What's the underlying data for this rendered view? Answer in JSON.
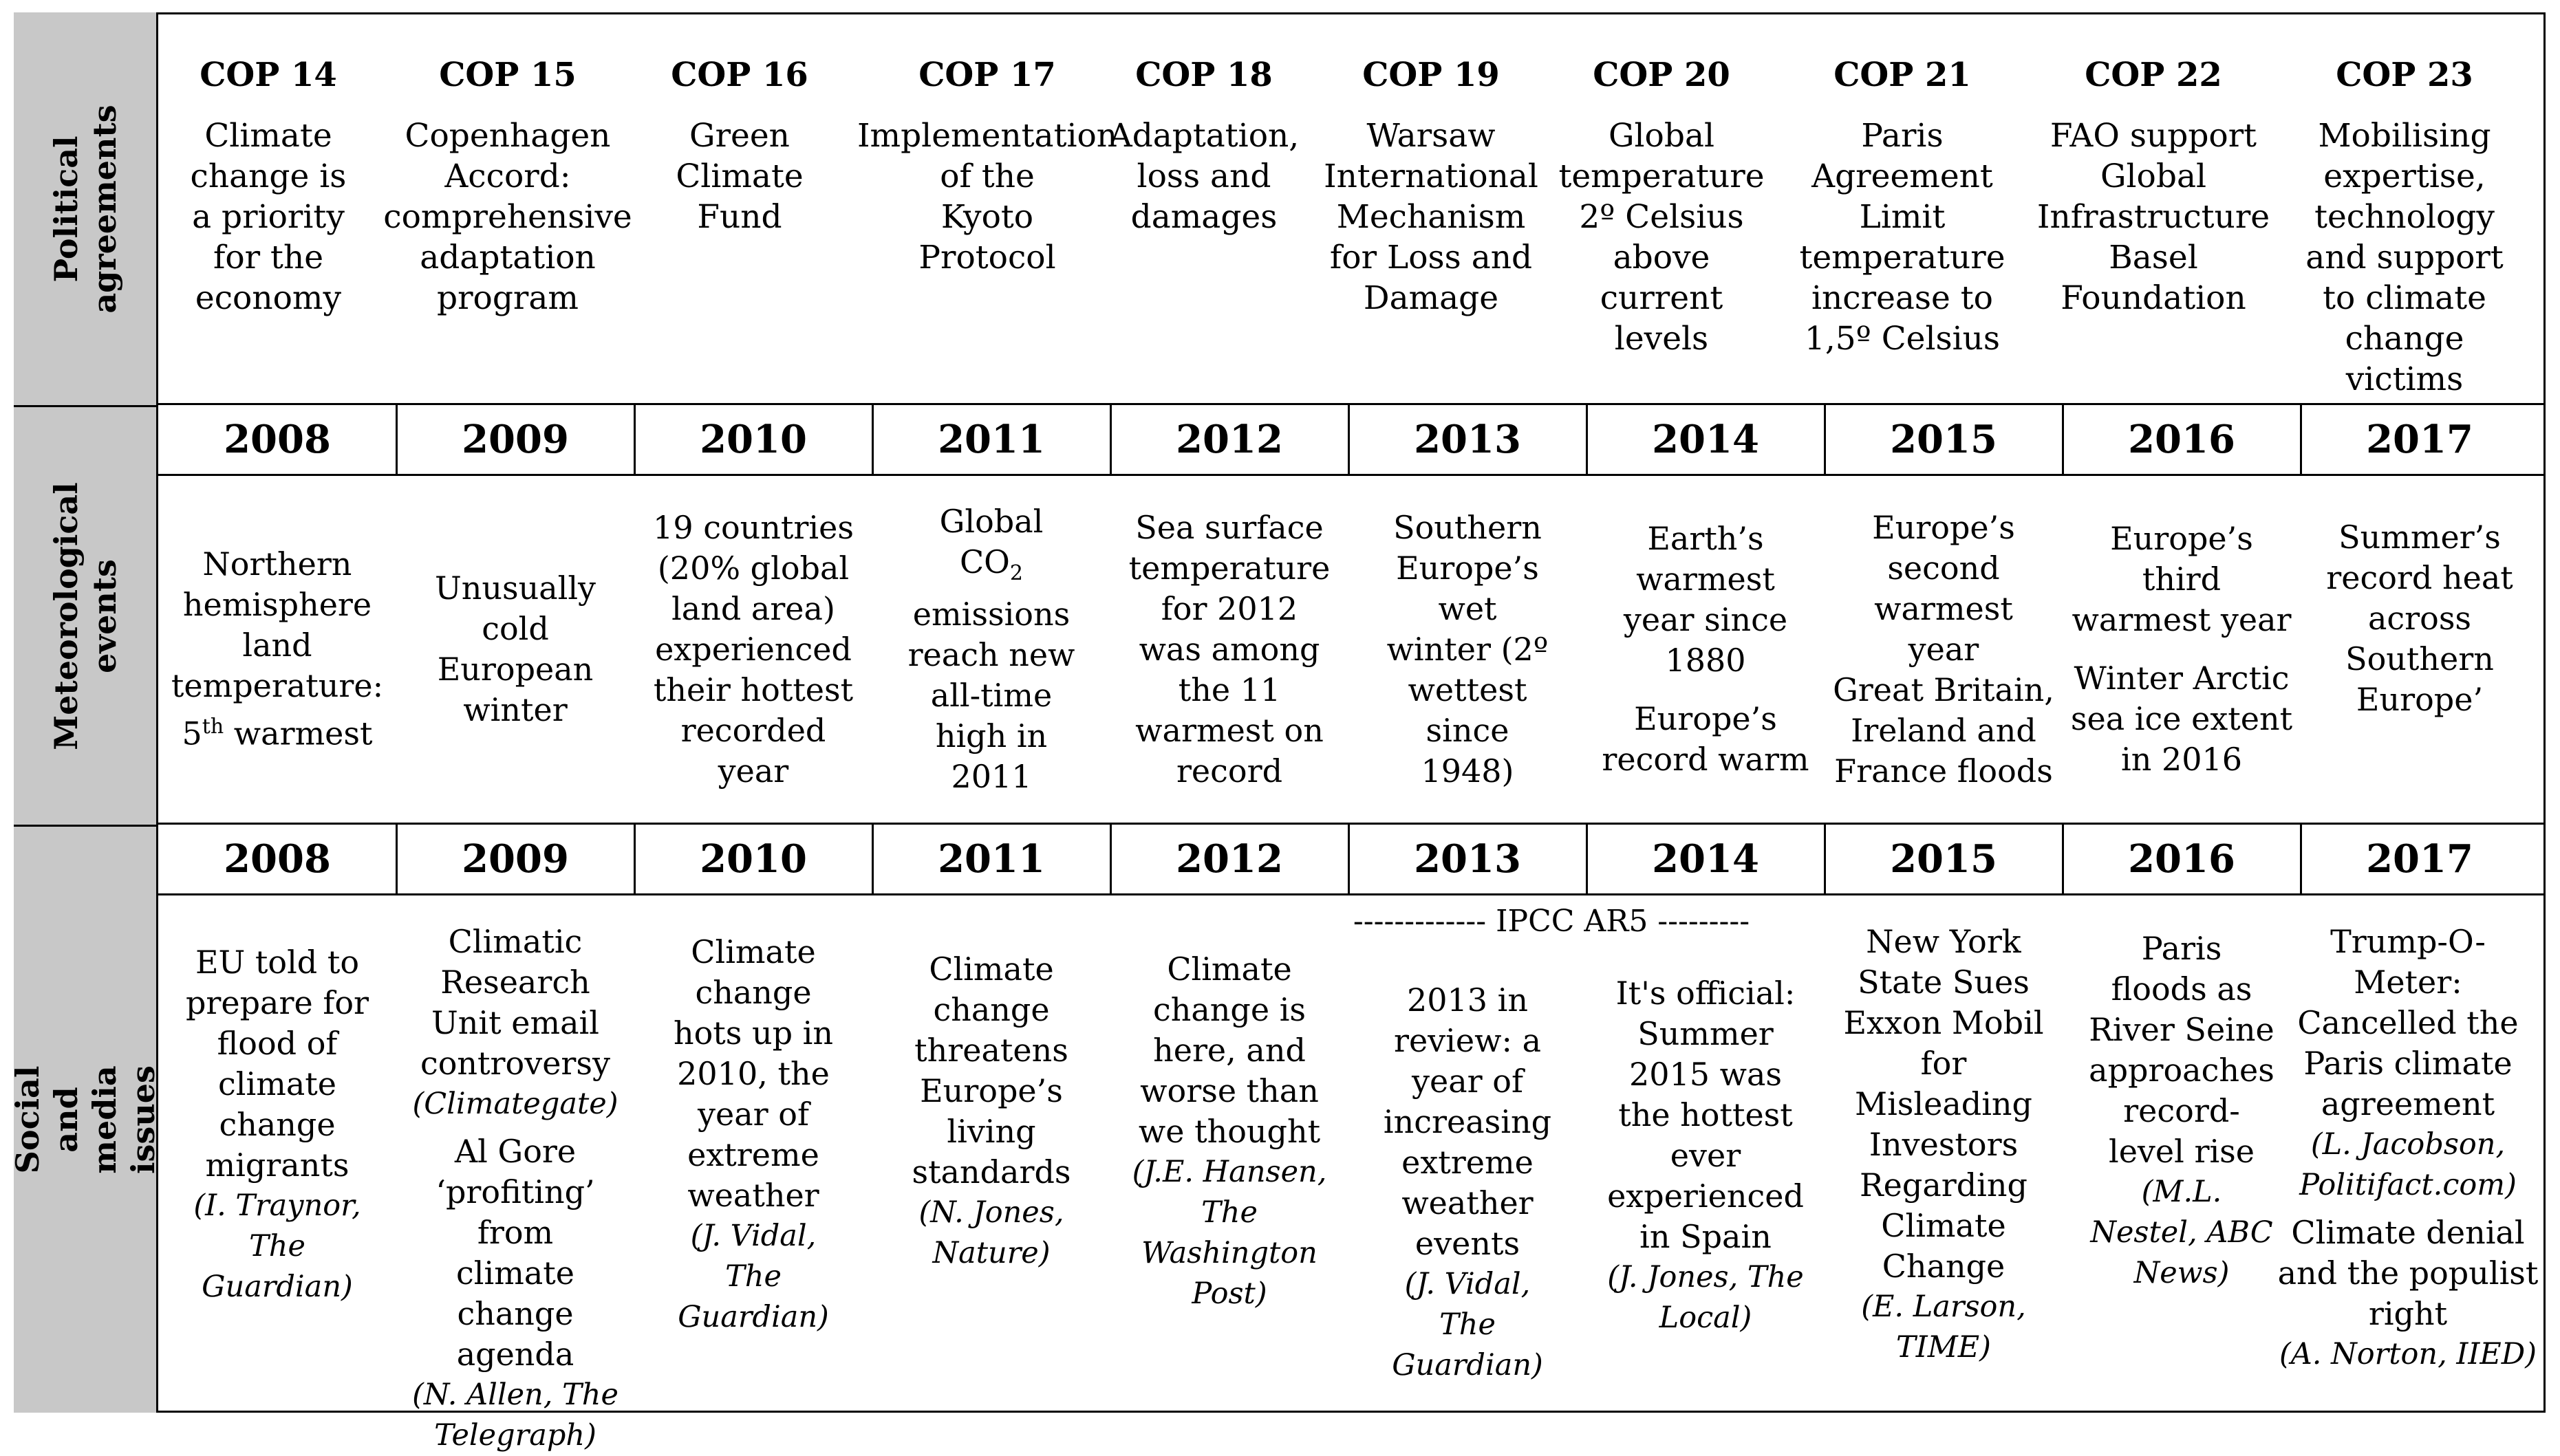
{
  "rows": {
    "political": "Political\nagreements",
    "meteorological": "Meteorological\nevents",
    "social": "Social and media\nissues"
  },
  "years": [
    "2008",
    "2009",
    "2010",
    "2011",
    "2012",
    "2013",
    "2014",
    "2015",
    "2016",
    "2017"
  ],
  "cops": [
    {
      "name": "COP 14",
      "text": "Climate\nchange is\na priority\nfor the\neconomy"
    },
    {
      "name": "COP 15",
      "text": "Copenhagen\nAccord:\ncomprehensive\nadaptation\nprogram"
    },
    {
      "name": "COP 16",
      "text": "Green\nClimate\nFund"
    },
    {
      "name": "COP 17",
      "text": "Implementation\nof the\nKyoto\nProtocol"
    },
    {
      "name": "COP 18",
      "text": "Adaptation,\nloss and\ndamages"
    },
    {
      "name": "COP 19",
      "text": "Warsaw\nInternational\nMechanism\nfor Loss and\nDamage"
    },
    {
      "name": "COP 20",
      "text": "Global\ntemperature\n2º Celsius\nabove\ncurrent\nlevels"
    },
    {
      "name": "COP 21",
      "text": "Paris\nAgreement\nLimit\ntemperature\nincrease to\n1,5º Celsius"
    },
    {
      "name": "COP 22",
      "text": "FAO support\nGlobal\nInfrastructure\nBasel\nFoundation"
    },
    {
      "name": "COP 23",
      "text": "Mobilising\nexpertise,\ntechnology\nand support\nto climate\nchange\nvictims"
    }
  ],
  "meteo": {
    "m2008_pre": "Northern\nhemisphere\nland\ntemperature:\n5",
    "m2008_sup": "th",
    "m2008_post": " warmest",
    "m2009": "Unusually\ncold\nEuropean\nwinter",
    "m2010": "19 countries\n(20% global\nland area)\nexperienced\ntheir hottest\nrecorded\nyear",
    "m2011_pre": "Global\nCO",
    "m2011_sub": "2",
    "m2011_post": "\nemissions\nreach new\nall-time\nhigh in\n2011",
    "m2012": "Sea surface\ntemperature\nfor 2012\nwas among\nthe 11\nwarmest on\nrecord",
    "m2013": "Southern\nEurope’s\nwet\nwinter (2º\nwettest\nsince\n1948)",
    "m2014a": "Earth’s\nwarmest\nyear since\n1880",
    "m2014b": "Europe’s\nrecord warm",
    "m2015a": "Europe’s\nsecond\nwarmest\nyear",
    "m2015b": "Great Britain,\nIreland and\nFrance floods",
    "m2016a": "Europe’s\nthird\nwarmest year",
    "m2016b": "Winter Arctic\nsea ice extent\nin 2016",
    "m2017": "Summer’s\nrecord heat\nacross\nSouthern\nEurope’"
  },
  "ipcc": "------------- IPCC AR5 ---------",
  "social": {
    "s2008": {
      "text": "EU told to\nprepare for\nflood of\nclimate\nchange\nmigrants",
      "cite": "(I. Traynor,\nThe\nGuardian)"
    },
    "s2009a": {
      "text": "Climatic\nResearch\nUnit email\ncontroversy",
      "cite": "(Climategate)"
    },
    "s2009b": {
      "text": "Al Gore\n‘profiting’ from\nclimate change\nagenda",
      "cite": "(N. Allen, The\nTelegraph)"
    },
    "s2010": {
      "text": "Climate\nchange\nhots up in\n2010, the\nyear of\nextreme\nweather",
      "cite": "(J. Vidal,\nThe\nGuardian)"
    },
    "s2011": {
      "text": "Climate\nchange\nthreatens\nEurope’s\nliving\nstandards",
      "cite": "(N. Jones,\nNature)"
    },
    "s2012": {
      "text": "Climate\nchange is\nhere, and\nworse than\nwe thought",
      "cite": "(J.E. Hansen,\nThe\nWashington\nPost)"
    },
    "s2013": {
      "text": "2013 in\nreview: a\nyear of\nincreasing\nextreme\nweather\nevents",
      "cite": "(J. Vidal,\nThe\nGuardian)"
    },
    "s2014": {
      "text": "It's official:\nSummer\n2015 was\nthe hottest\never\nexperienced\nin Spain",
      "cite": "(J. Jones, The\nLocal)"
    },
    "s2015": {
      "text": "New York\nState Sues\nExxon Mobil\nfor\nMisleading\nInvestors\nRegarding\nClimate\nChange",
      "cite": "(E. Larson,\nTIME)"
    },
    "s2016": {
      "text": "Paris\nfloods as\nRiver Seine\napproaches\nrecord-\nlevel rise",
      "cite": "(M.L.\nNestel, ABC\nNews)"
    },
    "s2017a": {
      "text": "Trump-O-\nMeter:\nCancelled the\nParis climate\nagreement",
      "cite": "(L. Jacobson,\nPolitifact.com)"
    },
    "s2017b": {
      "text": "Climate denial\nand the populist\nright",
      "cite": "(A. Norton, IIED)"
    }
  }
}
